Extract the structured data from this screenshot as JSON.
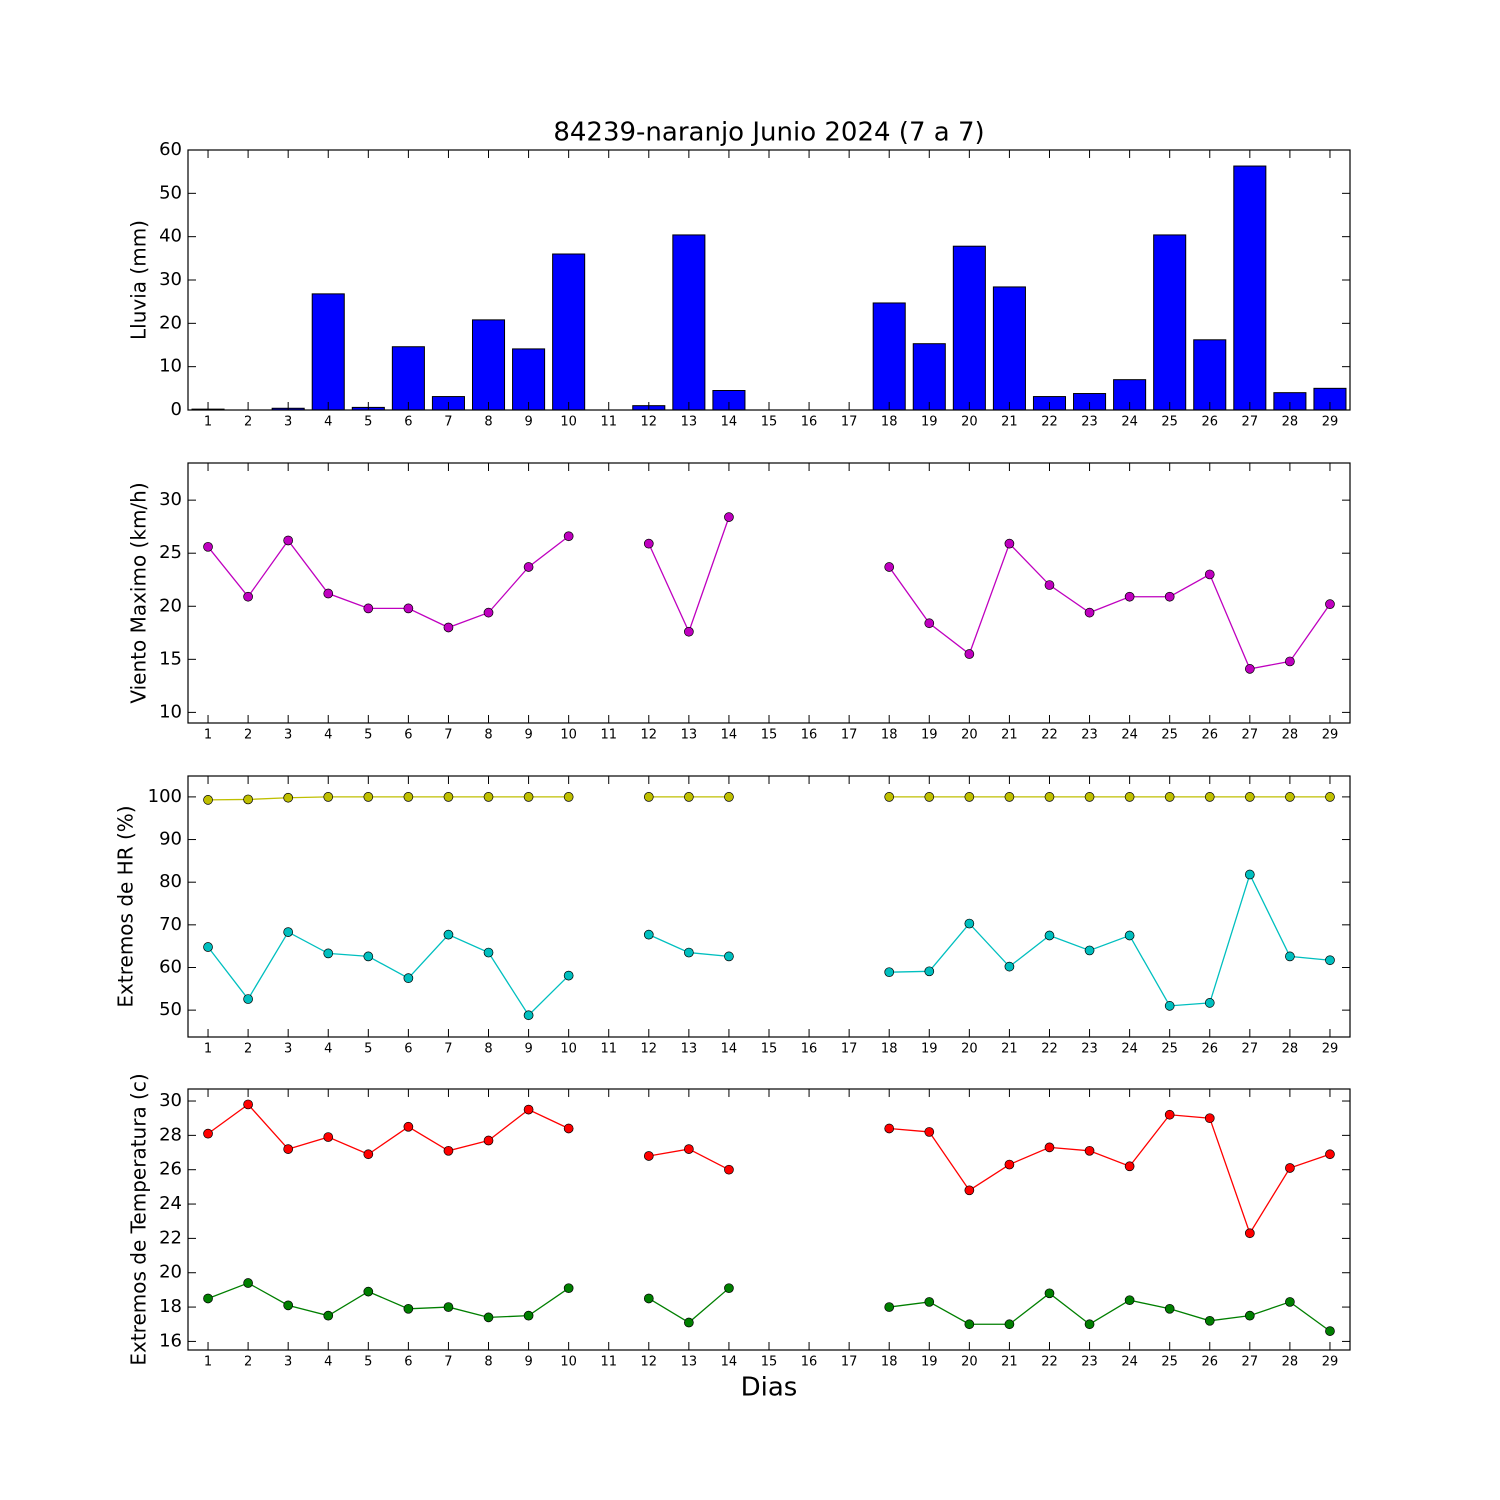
{
  "chart_data": [
    {
      "type": "bar",
      "title": "84239-naranjo Junio 2024  (7 a 7)",
      "y_label": "Lluvia (mm)",
      "x": [
        1,
        2,
        3,
        4,
        5,
        6,
        7,
        8,
        9,
        10,
        11,
        12,
        13,
        14,
        15,
        16,
        17,
        18,
        19,
        20,
        21,
        22,
        23,
        24,
        25,
        26,
        27,
        28,
        29
      ],
      "values": [
        0.2,
        0,
        0.4,
        26.8,
        0.6,
        14.6,
        3.1,
        20.8,
        14.1,
        36,
        0,
        1.0,
        40.4,
        4.5,
        0,
        0,
        0,
        24.7,
        15.3,
        37.8,
        28.4,
        3.1,
        3.8,
        7.0,
        40.4,
        16.2,
        56.3,
        4.0,
        5.0
      ],
      "color": "#0000ff",
      "xlim": [
        0.5,
        29.5
      ],
      "ylim": [
        0,
        60
      ],
      "xticks": [
        1,
        2,
        3,
        4,
        5,
        6,
        7,
        8,
        9,
        10,
        11,
        12,
        13,
        14,
        15,
        16,
        17,
        18,
        19,
        20,
        21,
        22,
        23,
        24,
        25,
        26,
        27,
        28,
        29
      ],
      "yticks": [
        0,
        10,
        20,
        30,
        40,
        50,
        60
      ]
    },
    {
      "type": "line",
      "y_label": "Viento Maximo (km/h)",
      "x": [
        1,
        2,
        3,
        4,
        5,
        6,
        7,
        8,
        9,
        10,
        11,
        12,
        13,
        14,
        15,
        16,
        17,
        18,
        19,
        20,
        21,
        22,
        23,
        24,
        25,
        26,
        27,
        28,
        29
      ],
      "series": [
        {
          "color": "#bf00bf",
          "values": [
            25.6,
            20.9,
            26.2,
            21.2,
            19.8,
            19.8,
            18.0,
            19.4,
            23.7,
            26.6,
            null,
            25.9,
            17.6,
            28.4,
            null,
            null,
            null,
            23.7,
            18.4,
            15.5,
            25.9,
            22.0,
            19.4,
            20.9,
            20.9,
            23.0,
            14.1,
            14.8,
            20.2
          ]
        }
      ],
      "xlim": [
        0.5,
        29.5
      ],
      "ylim": [
        9,
        33.5
      ],
      "xticks": [
        1,
        2,
        3,
        4,
        5,
        6,
        7,
        8,
        9,
        10,
        11,
        12,
        13,
        14,
        15,
        16,
        17,
        18,
        19,
        20,
        21,
        22,
        23,
        24,
        25,
        26,
        27,
        28,
        29
      ],
      "yticks": [
        10,
        15,
        20,
        25,
        30
      ]
    },
    {
      "type": "line",
      "y_label": "Extremos de HR (%)",
      "x": [
        1,
        2,
        3,
        4,
        5,
        6,
        7,
        8,
        9,
        10,
        11,
        12,
        13,
        14,
        15,
        16,
        17,
        18,
        19,
        20,
        21,
        22,
        23,
        24,
        25,
        26,
        27,
        28,
        29
      ],
      "series": [
        {
          "color": "#bfbf00",
          "values": [
            99.3,
            99.4,
            99.8,
            100,
            100,
            100,
            100,
            100,
            100,
            100,
            null,
            100,
            100,
            100,
            null,
            null,
            null,
            100,
            100,
            100,
            100,
            100,
            100,
            100,
            100,
            100,
            100,
            100,
            100
          ]
        },
        {
          "color": "#00bfbf",
          "values": [
            64.8,
            52.6,
            68.3,
            63.3,
            62.6,
            57.5,
            67.7,
            63.5,
            48.8,
            58.1,
            null,
            67.7,
            63.5,
            62.6,
            null,
            null,
            null,
            58.9,
            59.1,
            70.3,
            60.2,
            67.5,
            64.0,
            67.5,
            51.0,
            51.7,
            81.8,
            62.6,
            61.7
          ]
        }
      ],
      "xlim": [
        0.5,
        29.5
      ],
      "ylim": [
        43.7,
        104.9
      ],
      "xticks": [
        1,
        2,
        3,
        4,
        5,
        6,
        7,
        8,
        9,
        10,
        11,
        12,
        13,
        14,
        15,
        16,
        17,
        18,
        19,
        20,
        21,
        22,
        23,
        24,
        25,
        26,
        27,
        28,
        29
      ],
      "yticks": [
        50,
        60,
        70,
        80,
        90,
        100
      ]
    },
    {
      "type": "line",
      "y_label": "Extremos de Temperatura (c)",
      "x_label": "Dias",
      "x": [
        1,
        2,
        3,
        4,
        5,
        6,
        7,
        8,
        9,
        10,
        11,
        12,
        13,
        14,
        15,
        16,
        17,
        18,
        19,
        20,
        21,
        22,
        23,
        24,
        25,
        26,
        27,
        28,
        29
      ],
      "series": [
        {
          "color": "#ff0000",
          "values": [
            28.1,
            29.8,
            27.2,
            27.9,
            26.9,
            28.5,
            27.1,
            27.7,
            29.5,
            28.4,
            null,
            26.8,
            27.2,
            26.0,
            null,
            null,
            null,
            28.4,
            28.2,
            24.8,
            26.3,
            27.3,
            27.1,
            26.2,
            29.2,
            29.0,
            22.3,
            26.1,
            26.9
          ]
        },
        {
          "color": "#007f00",
          "values": [
            18.5,
            19.4,
            18.1,
            17.5,
            18.9,
            17.9,
            18.0,
            17.4,
            17.5,
            19.1,
            null,
            18.5,
            17.1,
            19.1,
            null,
            null,
            null,
            18.0,
            18.3,
            17.0,
            17.0,
            18.8,
            17.0,
            18.4,
            17.9,
            17.2,
            17.5,
            18.3,
            16.6
          ]
        }
      ],
      "xlim": [
        0.5,
        29.5
      ],
      "ylim": [
        15.5,
        30.7
      ],
      "xticks": [
        1,
        2,
        3,
        4,
        5,
        6,
        7,
        8,
        9,
        10,
        11,
        12,
        13,
        14,
        15,
        16,
        17,
        18,
        19,
        20,
        21,
        22,
        23,
        24,
        25,
        26,
        27,
        28,
        29
      ],
      "yticks": [
        16,
        18,
        20,
        22,
        24,
        26,
        28,
        30
      ]
    }
  ]
}
